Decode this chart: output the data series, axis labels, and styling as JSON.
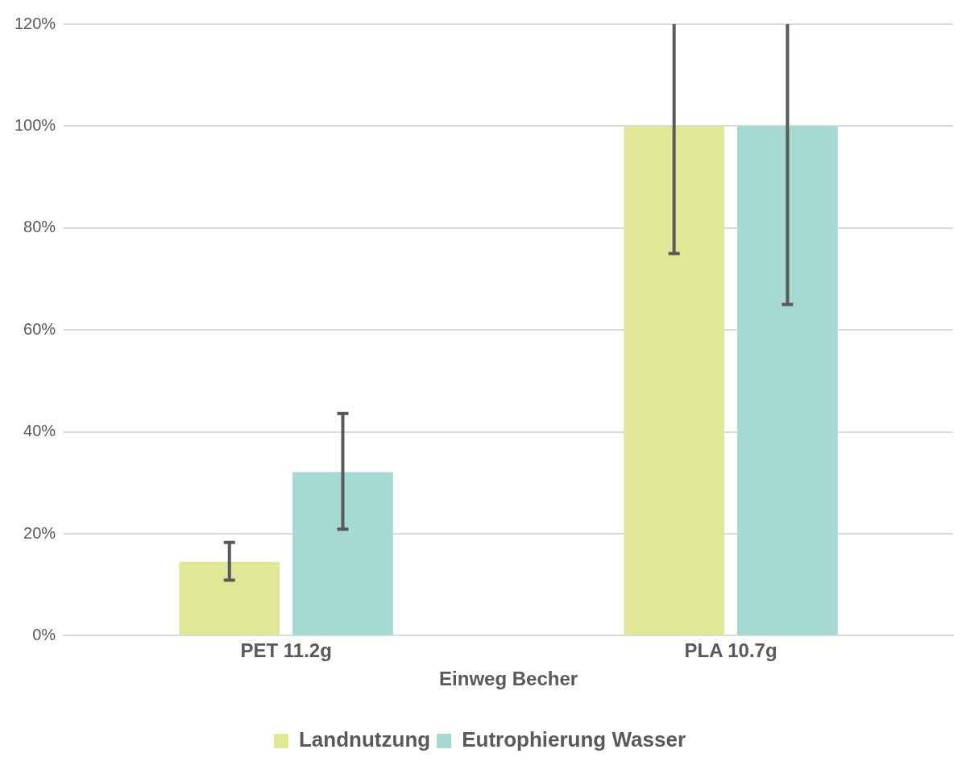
{
  "chart_data": {
    "type": "bar",
    "xlabel": "Einweg Becher",
    "categories": [
      "PET 11.2g",
      "PLA 10.7g"
    ],
    "series": [
      {
        "name": "Landnutzung",
        "color": "#e0e796",
        "values": [
          14.5,
          100
        ],
        "errors": [
          [
            10.9,
            18.3
          ],
          [
            75,
            120
          ]
        ]
      },
      {
        "name": "Eutrophierung Wasser",
        "color": "#a5d9d2",
        "values": [
          32.1,
          100
        ],
        "errors": [
          [
            20.9,
            43.6
          ],
          [
            65,
            120
          ]
        ]
      }
    ],
    "ylim": [
      0,
      120
    ],
    "yticks": [
      {
        "value": 0,
        "label": "0%"
      },
      {
        "value": 20,
        "label": "20%"
      },
      {
        "value": 40,
        "label": "40%"
      },
      {
        "value": 60,
        "label": "60%"
      },
      {
        "value": 80,
        "label": "80%"
      },
      {
        "value": 100,
        "label": "100%"
      },
      {
        "value": 120,
        "label": "120%"
      }
    ],
    "grid": "y",
    "legend": "bottom"
  }
}
